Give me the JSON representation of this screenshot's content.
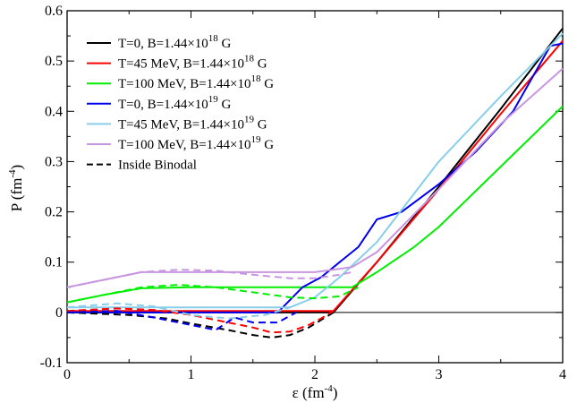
{
  "chart_data": {
    "type": "line",
    "title": "",
    "xlabel": "ε (fm",
    "xlabel_exp": "-4",
    "xlabel_close": ")",
    "ylabel": "P (fm",
    "ylabel_exp": "-4",
    "ylabel_close": ")",
    "xlim": [
      0,
      4
    ],
    "ylim": [
      -0.1,
      0.6
    ],
    "xticks": [
      "0",
      "1",
      "2",
      "3",
      "4"
    ],
    "yticks": [
      "-0.1",
      "0",
      "0.1",
      "0.2",
      "0.3",
      "0.4",
      "0.5",
      "0.6"
    ],
    "grid": false,
    "legend_position": "top-left",
    "reference_line_y": 0,
    "series": [
      {
        "legend": [
          "T=0, B=1.44×10",
          "18",
          " G"
        ],
        "color": "#000000",
        "style": "solid",
        "x": [
          0,
          0.5,
          1.0,
          1.5,
          2.0,
          2.15,
          2.5,
          3.0,
          3.5,
          4.0
        ],
        "y": [
          0,
          0,
          0,
          0,
          0,
          0,
          0.1,
          0.25,
          0.405,
          0.565
        ]
      },
      {
        "legend": [
          "T=45 MeV, B=1.44×10",
          "18",
          " G"
        ],
        "color": "#ff0000",
        "style": "solid",
        "x": [
          0,
          0.5,
          1.0,
          1.5,
          2.0,
          2.15,
          2.5,
          3.0,
          3.5,
          4.0
        ],
        "y": [
          0.003,
          0.003,
          0.003,
          0.003,
          0.003,
          0.003,
          0.1,
          0.245,
          0.395,
          0.54
        ]
      },
      {
        "legend": [
          "T=100 MeV, B=1.44×10",
          "18",
          " G"
        ],
        "color": "#00ee00",
        "style": "solid",
        "x": [
          0,
          0.3,
          0.6,
          1.0,
          1.5,
          2.0,
          2.3,
          2.5,
          2.8,
          3.0,
          3.5,
          4.0
        ],
        "y": [
          0.02,
          0.035,
          0.048,
          0.05,
          0.05,
          0.05,
          0.05,
          0.08,
          0.13,
          0.17,
          0.29,
          0.41
        ]
      },
      {
        "legend": [
          "T=0, B=1.44×10",
          "19",
          " G"
        ],
        "color": "#0000ee",
        "style": "solid",
        "x": [
          0,
          0.4,
          0.7,
          1.0,
          1.3,
          1.7,
          1.9,
          2.05,
          2.2,
          2.35,
          2.5,
          2.7,
          3.0,
          3.3,
          3.6,
          3.9,
          4.0
        ],
        "y": [
          0,
          0,
          0,
          0,
          0,
          0,
          0.05,
          0.07,
          0.1,
          0.13,
          0.185,
          0.2,
          0.255,
          0.32,
          0.4,
          0.53,
          0.535
        ]
      },
      {
        "legend": [
          "T=45 MeV, B=1.44×10",
          "19",
          " G"
        ],
        "color": "#87ceeb",
        "style": "solid",
        "x": [
          0,
          0.5,
          1.0,
          1.5,
          1.8,
          2.0,
          2.2,
          2.5,
          3.0,
          3.5,
          4.0
        ],
        "y": [
          0.01,
          0.01,
          0.01,
          0.01,
          0.01,
          0.03,
          0.07,
          0.14,
          0.3,
          0.43,
          0.555
        ]
      },
      {
        "legend": [
          "T=100 MeV, B=1.44×10",
          "19",
          " G"
        ],
        "color": "#c896e0",
        "style": "solid",
        "x": [
          0,
          0.3,
          0.6,
          1.0,
          1.5,
          2.0,
          2.3,
          2.5,
          3.0,
          3.5,
          4.0
        ],
        "y": [
          0.05,
          0.065,
          0.08,
          0.08,
          0.08,
          0.08,
          0.09,
          0.12,
          0.245,
          0.375,
          0.485
        ]
      },
      {
        "legend": [
          "Inside Binodal",
          "",
          ""
        ],
        "color": "#000000",
        "style": "dashed",
        "x": [
          0,
          0.5,
          0.8,
          1.0,
          1.3,
          1.5,
          1.65,
          1.8,
          1.95,
          2.05,
          2.15
        ],
        "y": [
          0,
          -0.005,
          -0.012,
          -0.022,
          -0.035,
          -0.045,
          -0.05,
          -0.045,
          -0.03,
          -0.015,
          0
        ]
      },
      {
        "legend": null,
        "color": "#ff0000",
        "style": "dashed",
        "x": [
          0,
          0.4,
          0.7,
          1.0,
          1.3,
          1.5,
          1.65,
          1.8,
          1.95,
          2.05,
          2.15
        ],
        "y": [
          0.003,
          0.008,
          0.005,
          -0.005,
          -0.02,
          -0.03,
          -0.04,
          -0.038,
          -0.025,
          -0.012,
          0.003
        ]
      },
      {
        "legend": null,
        "color": "#00ee00",
        "style": "dashed",
        "x": [
          0,
          0.3,
          0.6,
          0.9,
          1.2,
          1.5,
          1.8,
          2.0,
          2.2,
          2.35
        ],
        "y": [
          0.02,
          0.035,
          0.05,
          0.055,
          0.05,
          0.04,
          0.03,
          0.028,
          0.032,
          0.05
        ]
      },
      {
        "legend": null,
        "color": "#0000ee",
        "style": "dashed",
        "x": [
          0,
          0.4,
          0.7,
          1.0,
          1.2,
          1.35,
          1.5,
          1.7,
          1.85
        ],
        "y": [
          0,
          0.003,
          -0.01,
          -0.025,
          -0.035,
          -0.01,
          -0.02,
          -0.02,
          0
        ]
      },
      {
        "legend": null,
        "color": "#87ceeb",
        "style": "dashed",
        "x": [
          0,
          0.4,
          0.7,
          1.0,
          1.3,
          1.6,
          1.8
        ],
        "y": [
          0.01,
          0.018,
          0.012,
          -0.005,
          -0.012,
          -0.005,
          0.01
        ]
      },
      {
        "legend": null,
        "color": "#c896e0",
        "style": "dashed",
        "x": [
          0,
          0.3,
          0.6,
          0.9,
          1.2,
          1.5,
          1.8,
          2.0,
          2.2,
          2.3
        ],
        "y": [
          0.05,
          0.065,
          0.08,
          0.085,
          0.083,
          0.075,
          0.068,
          0.068,
          0.075,
          0.08
        ]
      }
    ]
  }
}
